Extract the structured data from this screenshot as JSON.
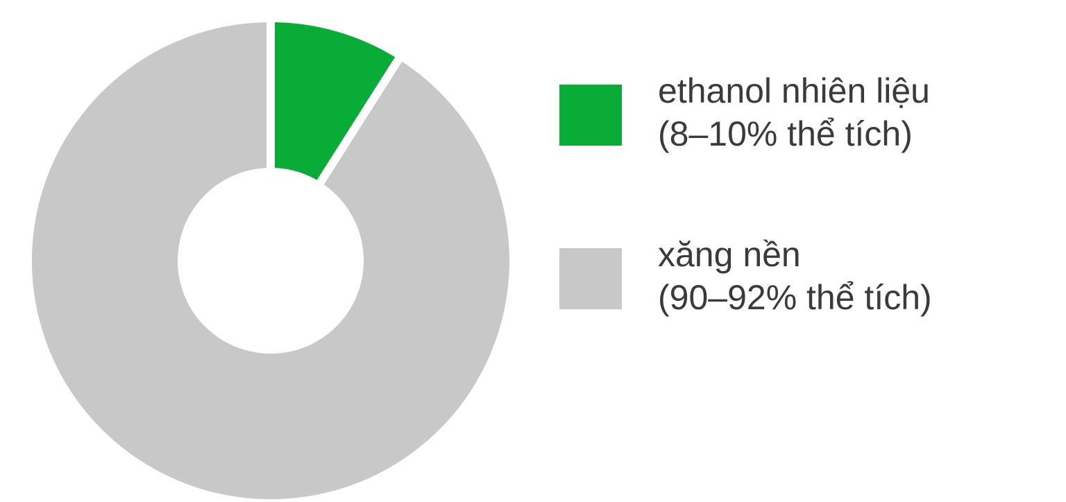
{
  "chart_data": {
    "type": "pie",
    "style": "donut",
    "title": "",
    "slices": [
      {
        "label_line1": "ethanol nhiên liệu",
        "label_line2": "(8–10% thể tích)",
        "value": 9,
        "color": "#0aac38"
      },
      {
        "label_line1": "xăng nền",
        "label_line2": "(90–92% thể tích)",
        "value": 91,
        "color": "#c8c8c8"
      }
    ],
    "legend_position": "right",
    "start_angle": "top (12 o'clock), clockwise"
  }
}
